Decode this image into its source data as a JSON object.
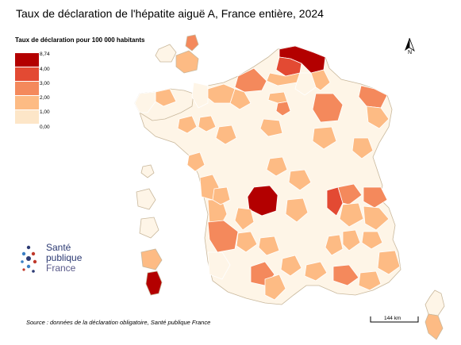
{
  "title": "Taux de déclaration de l'hépatite aiguë A, France entière, 2024",
  "legend": {
    "title": "Taux de déclaration pour 100 000 habitants",
    "classes": [
      {
        "label": "8,74",
        "color": "#b30000"
      },
      {
        "label": "4,00",
        "color": "#e34a33"
      },
      {
        "label": "3,00",
        "color": "#f4895c"
      },
      {
        "label": "2,00",
        "color": "#fdbb84"
      },
      {
        "label": "1,00",
        "color": "#fde6c8"
      },
      {
        "label": "0,00",
        "color": "#fef5e7"
      }
    ]
  },
  "north_label": "N",
  "logo": {
    "line1": "Santé",
    "line2": "publique",
    "line3": "France"
  },
  "source": "Source : données de la déclaration obligatoire, Santé publique France",
  "scale": {
    "label": "144 km"
  },
  "colors": {
    "border": "#ffffff",
    "outline": "#b0a08a"
  }
}
